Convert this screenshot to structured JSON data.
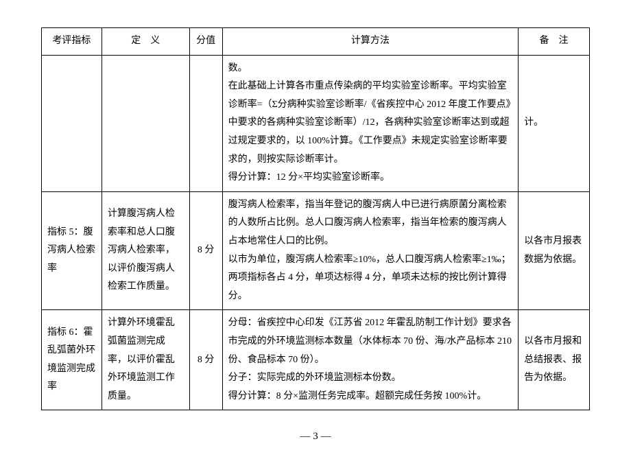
{
  "headers": {
    "c1": "考评指标",
    "c2": "定　义",
    "c3": "分值",
    "c4": "计算方法",
    "c5": "备　注"
  },
  "rows": [
    {
      "c1": "",
      "c2": "",
      "c3": "",
      "c4": "数。\n在此基础上计算各市重点传染病的平均实验室诊断率。平均实验室诊断率=（Σ分病种实验室诊断率/《省疾控中心 2012 年度工作要点》中要求的各病种实验室诊断率）/12，各病种实验室诊断率达到或超过规定要求的，以 100%计算。《工作要点》未规定实验室诊断率要求的，则按实际诊断率计。\n得分计算：12 分×平均实验室诊断率。",
      "c5": "计。"
    },
    {
      "c1": "指标 5：腹泻病人检索率",
      "c2": "计算腹泻病人检索率和总人口腹泻病人检索率，以评价腹泻病人检索工作质量。",
      "c3": "8 分",
      "c4": "腹泻病人检索率，指当年登记的腹泻病人中已进行病原菌分离检索的人数所占比例。总人口腹泻病人检索率，指当年检索的腹泻病人占本地常住人口的比例。\n以市为单位，腹泻病人检索率≥10%，总人口腹泻病人检索率≥1‰；两项指标各占 4 分，单项达标得 4 分，单项未达标的按比例计算得分。",
      "c5": "以各市月报表数据为依据。"
    },
    {
      "c1": "指标 6：霍乱弧菌外环境监测完成率",
      "c2": "计算外环境霍乱弧菌监测完成率，以评价霍乱外环境监测工作质量。",
      "c3": "8 分",
      "c4": "分母：省疾控中心印发《江苏省 2012 年霍乱防制工作计划》要求各市完成的外环境监测标本数量（水体标本 70 份、海/水产品标本 210 份、食品标本 70 份）。\n分子：实际完成的外环境监测标本份数。\n得分计算：8 分×监测任务完成率。超额完成任务按 100%计。",
      "c5": "以各市月报和总结报表、报告为依据。"
    }
  ],
  "page_number": "— 3 —"
}
